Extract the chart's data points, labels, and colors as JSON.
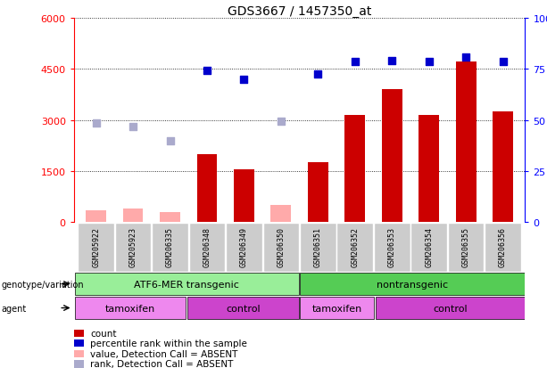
{
  "title": "GDS3667 / 1457350_at",
  "samples": [
    "GSM205922",
    "GSM205923",
    "GSM206335",
    "GSM206348",
    "GSM206349",
    "GSM206350",
    "GSM206351",
    "GSM206352",
    "GSM206353",
    "GSM206354",
    "GSM206355",
    "GSM206356"
  ],
  "count_values": [
    null,
    null,
    null,
    2000,
    1550,
    null,
    1750,
    3150,
    3900,
    3150,
    4700,
    3250
  ],
  "count_absent": [
    350,
    400,
    300,
    null,
    null,
    500,
    null,
    null,
    null,
    null,
    null,
    null
  ],
  "rank_values": [
    null,
    null,
    null,
    4450,
    4200,
    null,
    4350,
    4700,
    4750,
    4700,
    4850,
    4700
  ],
  "rank_absent": [
    2900,
    2800,
    2400,
    null,
    null,
    2950,
    null,
    null,
    null,
    null,
    null,
    null
  ],
  "ylim_left": [
    0,
    6000
  ],
  "ylim_right": [
    0,
    100
  ],
  "yticks_left": [
    0,
    1500,
    3000,
    4500,
    6000
  ],
  "yticks_left_labels": [
    "0",
    "1500",
    "3000",
    "4500",
    "6000"
  ],
  "yticks_right": [
    0,
    25,
    50,
    75,
    100
  ],
  "yticks_right_labels": [
    "0",
    "25",
    "50",
    "75",
    "100%"
  ],
  "bar_color": "#cc0000",
  "bar_absent_color": "#ffaaaa",
  "dot_color": "#0000cc",
  "dot_absent_color": "#aaaacc",
  "group1_label": "ATF6-MER transgenic",
  "group2_label": "nontransgenic",
  "group1_color": "#99ee99",
  "group2_color": "#55cc55",
  "agent1_label": "tamoxifen",
  "agent2_label": "control",
  "agent_tamoxifen_color": "#ee88ee",
  "agent_control_color": "#cc44cc",
  "sample_bg_color": "#cccccc",
  "legend_items": [
    {
      "color": "#cc0000",
      "label": "count"
    },
    {
      "color": "#0000cc",
      "label": "percentile rank within the sample"
    },
    {
      "color": "#ffaaaa",
      "label": "value, Detection Call = ABSENT"
    },
    {
      "color": "#aaaacc",
      "label": "rank, Detection Call = ABSENT"
    }
  ]
}
